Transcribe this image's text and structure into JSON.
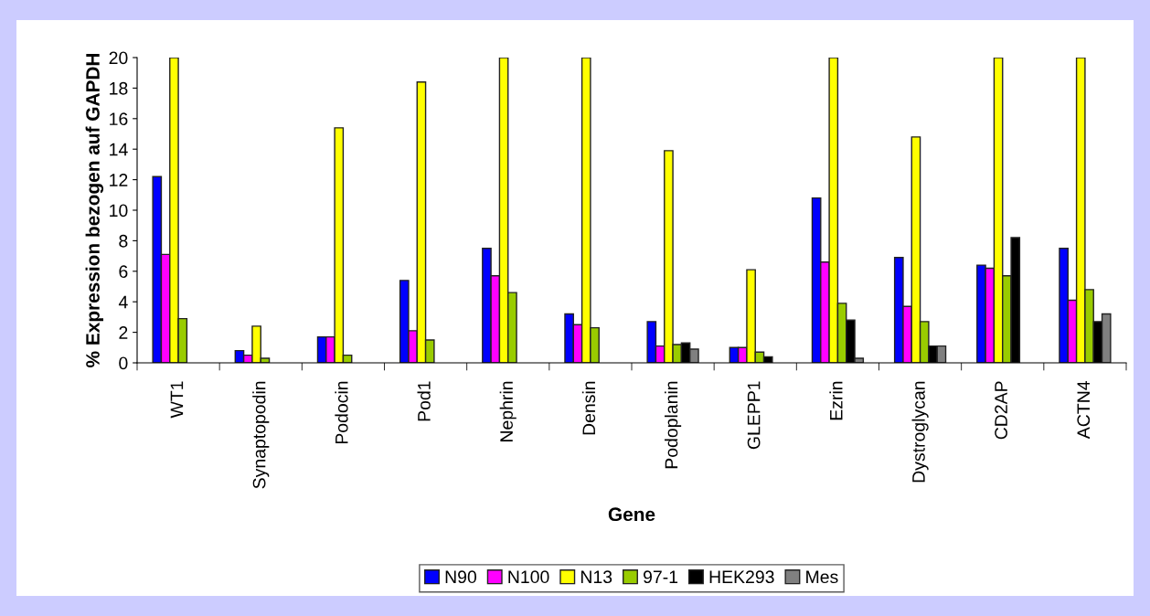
{
  "chart_data": {
    "type": "bar",
    "xlabel": "Gene",
    "ylabel": "% Expression bezogen auf GAPDH",
    "categories": [
      "WT1",
      "Synaptopodin",
      "Podocin",
      "Pod1",
      "Nephrin",
      "Densin",
      "Podoplanin",
      "GLEPP1",
      "Ezrin",
      "Dystroglycan",
      "CD2AP",
      "ACTN4"
    ],
    "series": [
      {
        "name": "N90",
        "color": "#0000ff",
        "values": [
          12.2,
          0.8,
          1.7,
          5.4,
          7.5,
          3.2,
          2.7,
          1.0,
          10.8,
          6.9,
          6.4,
          7.5
        ]
      },
      {
        "name": "N100",
        "color": "#ff00ff",
        "values": [
          7.1,
          0.5,
          1.7,
          2.1,
          5.7,
          2.5,
          1.1,
          1.0,
          6.6,
          3.7,
          6.2,
          4.1
        ]
      },
      {
        "name": "N13",
        "color": "#ffff00",
        "values": [
          20,
          2.4,
          15.4,
          18.4,
          20,
          20,
          13.9,
          6.1,
          20,
          14.8,
          20,
          20
        ]
      },
      {
        "name": "97-1",
        "color": "#99cc00",
        "values": [
          2.9,
          0.3,
          0.5,
          1.5,
          4.6,
          2.3,
          1.2,
          0.7,
          3.9,
          2.7,
          5.7,
          4.8
        ]
      },
      {
        "name": "HEK293",
        "color": "#000000",
        "values": [
          null,
          null,
          null,
          null,
          null,
          null,
          1.3,
          0.4,
          2.8,
          1.1,
          8.2,
          2.7
        ]
      },
      {
        "name": "Mes",
        "color": "#808080",
        "values": [
          null,
          null,
          null,
          null,
          null,
          null,
          0.9,
          null,
          0.3,
          1.1,
          null,
          3.2
        ]
      }
    ],
    "ylim": [
      0,
      20
    ],
    "yticks": [
      0,
      2,
      4,
      6,
      8,
      10,
      12,
      14,
      16,
      18,
      20
    ],
    "grid": false,
    "legend": "bottom"
  }
}
